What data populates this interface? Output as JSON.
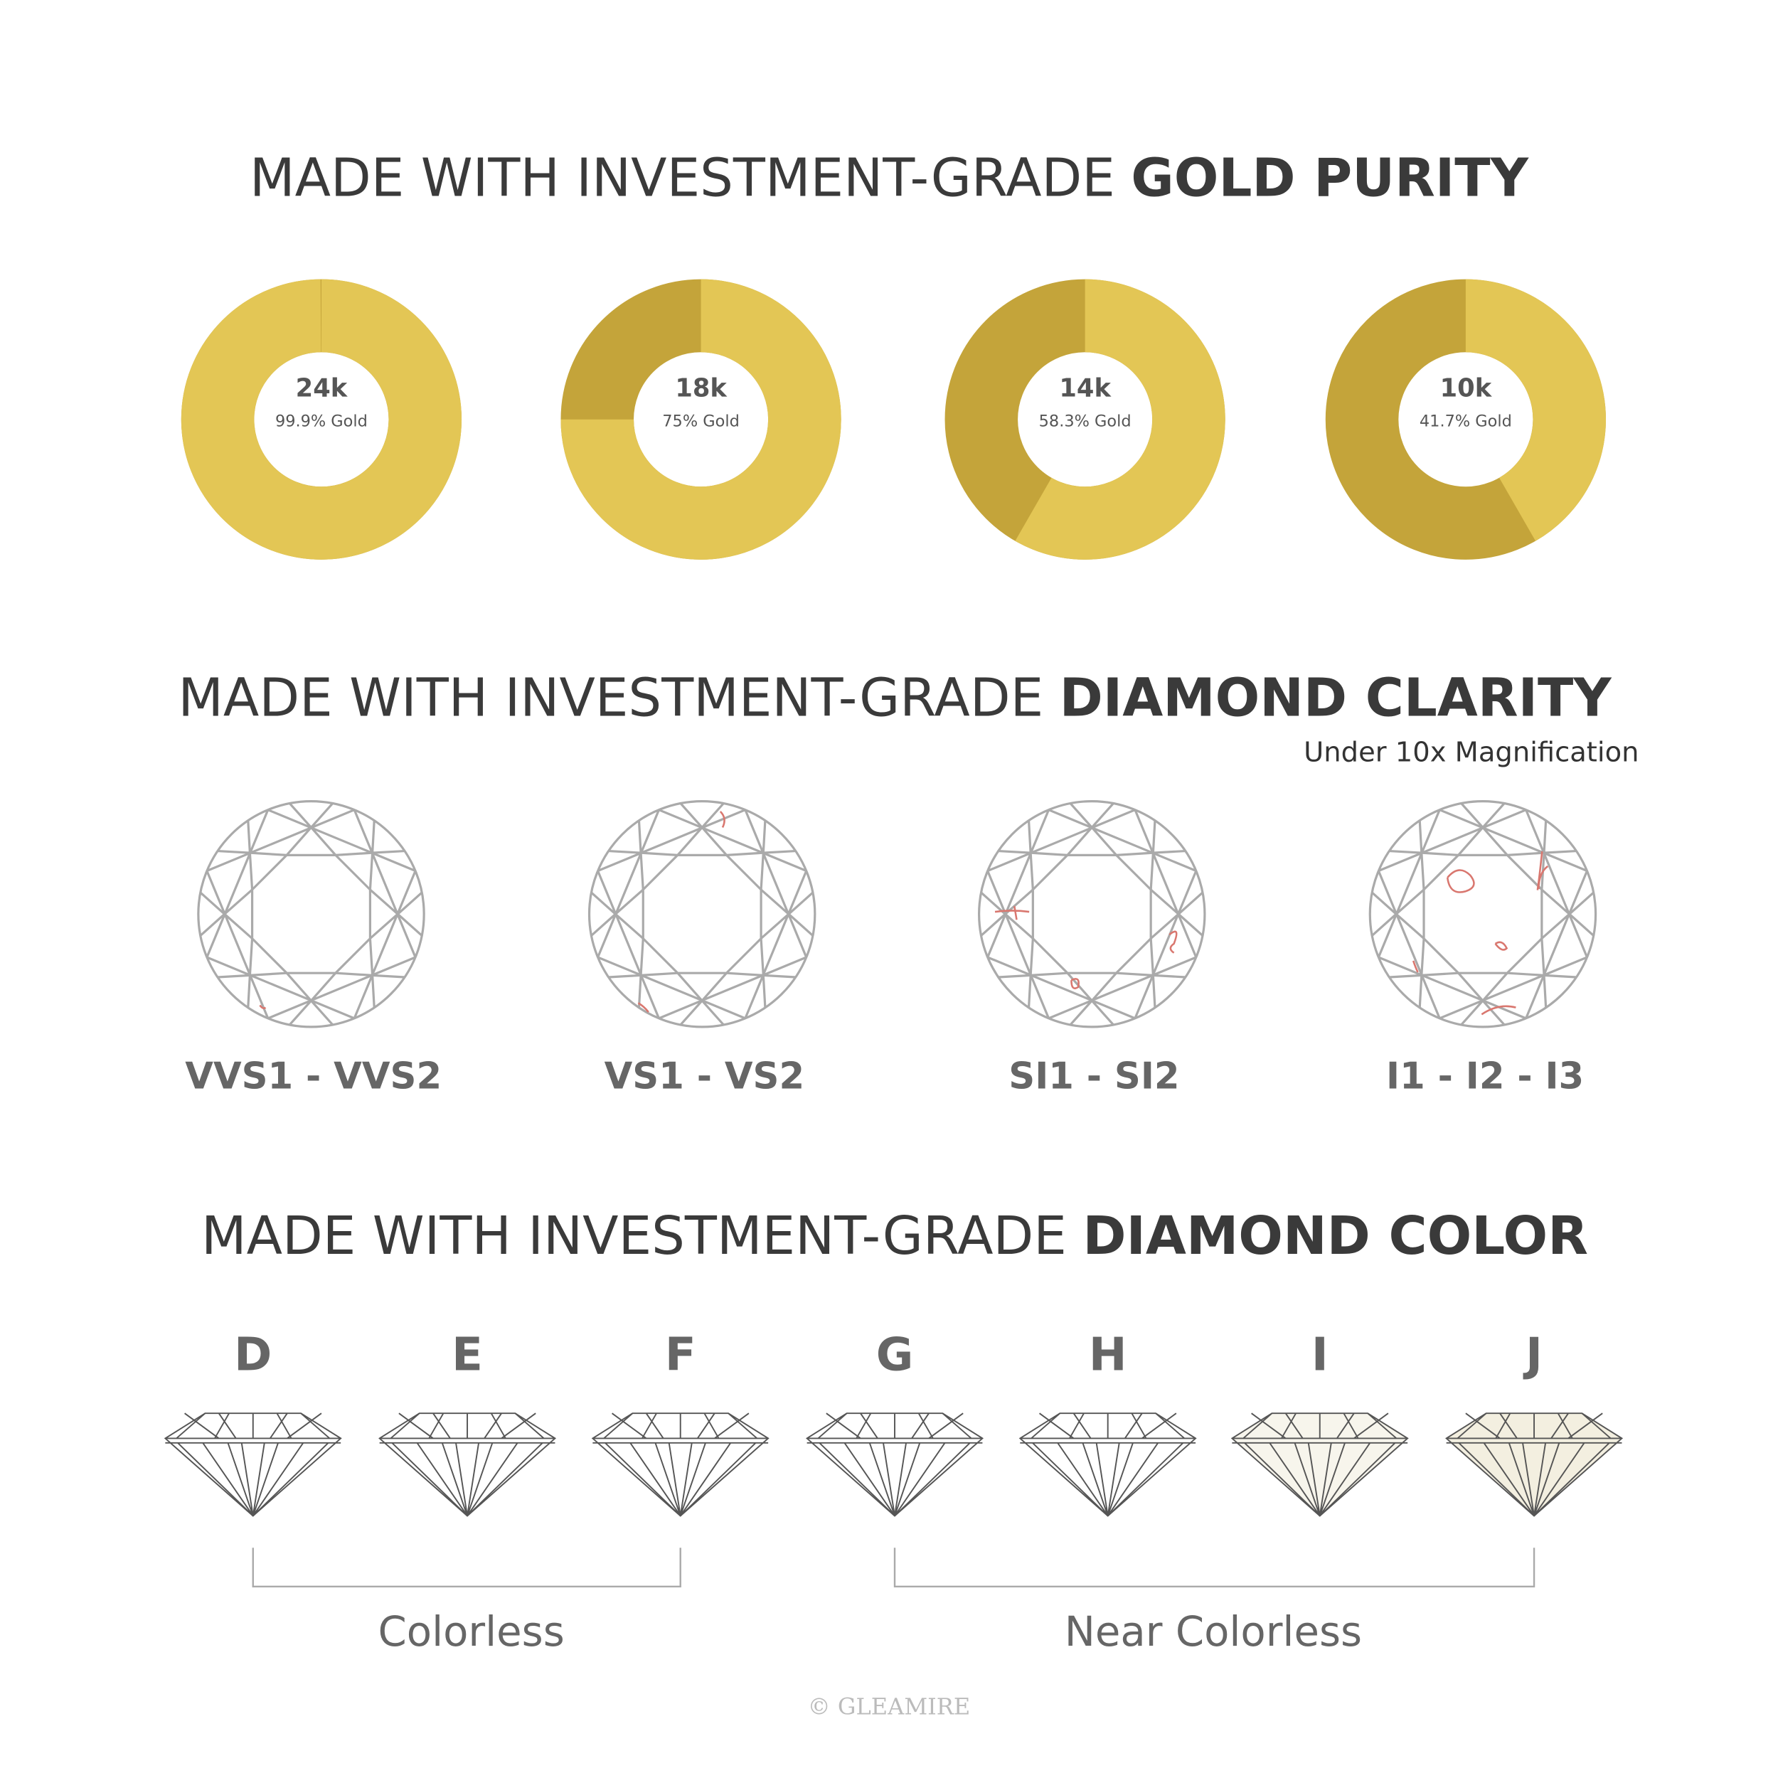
{
  "gold": {
    "title": {
      "prefix": "MADE WITH INVESTMENT-GRADE",
      "emphasis": "GOLD PURITY"
    },
    "items": [
      {
        "karat": "24k",
        "label": "99.9% Gold",
        "percent": 99.9
      },
      {
        "karat": "18k",
        "label": "75% Gold",
        "percent": 75
      },
      {
        "karat": "14k",
        "label": "58.3% Gold",
        "percent": 58.3
      },
      {
        "karat": "10k",
        "label": "41.7% Gold",
        "percent": 41.7
      }
    ]
  },
  "clarity": {
    "title": {
      "prefix": "MADE WITH INVESTMENT-GRADE",
      "emphasis": "DIAMOND CLARITY"
    },
    "note": "Under 10x Magnification",
    "grades": [
      "VVS1 - VVS2",
      "VS1 - VS2",
      "SI1 - SI2",
      "I1 - I2 - I3"
    ]
  },
  "color": {
    "title": {
      "prefix": "MADE WITH INVESTMENT-GRADE",
      "emphasis": "DIAMOND COLOR"
    },
    "grades": [
      "D",
      "E",
      "F",
      "G",
      "H",
      "I",
      "J"
    ],
    "groups": [
      "Colorless",
      "Near Colorless"
    ]
  },
  "footer": "© GLEAMIRE"
}
